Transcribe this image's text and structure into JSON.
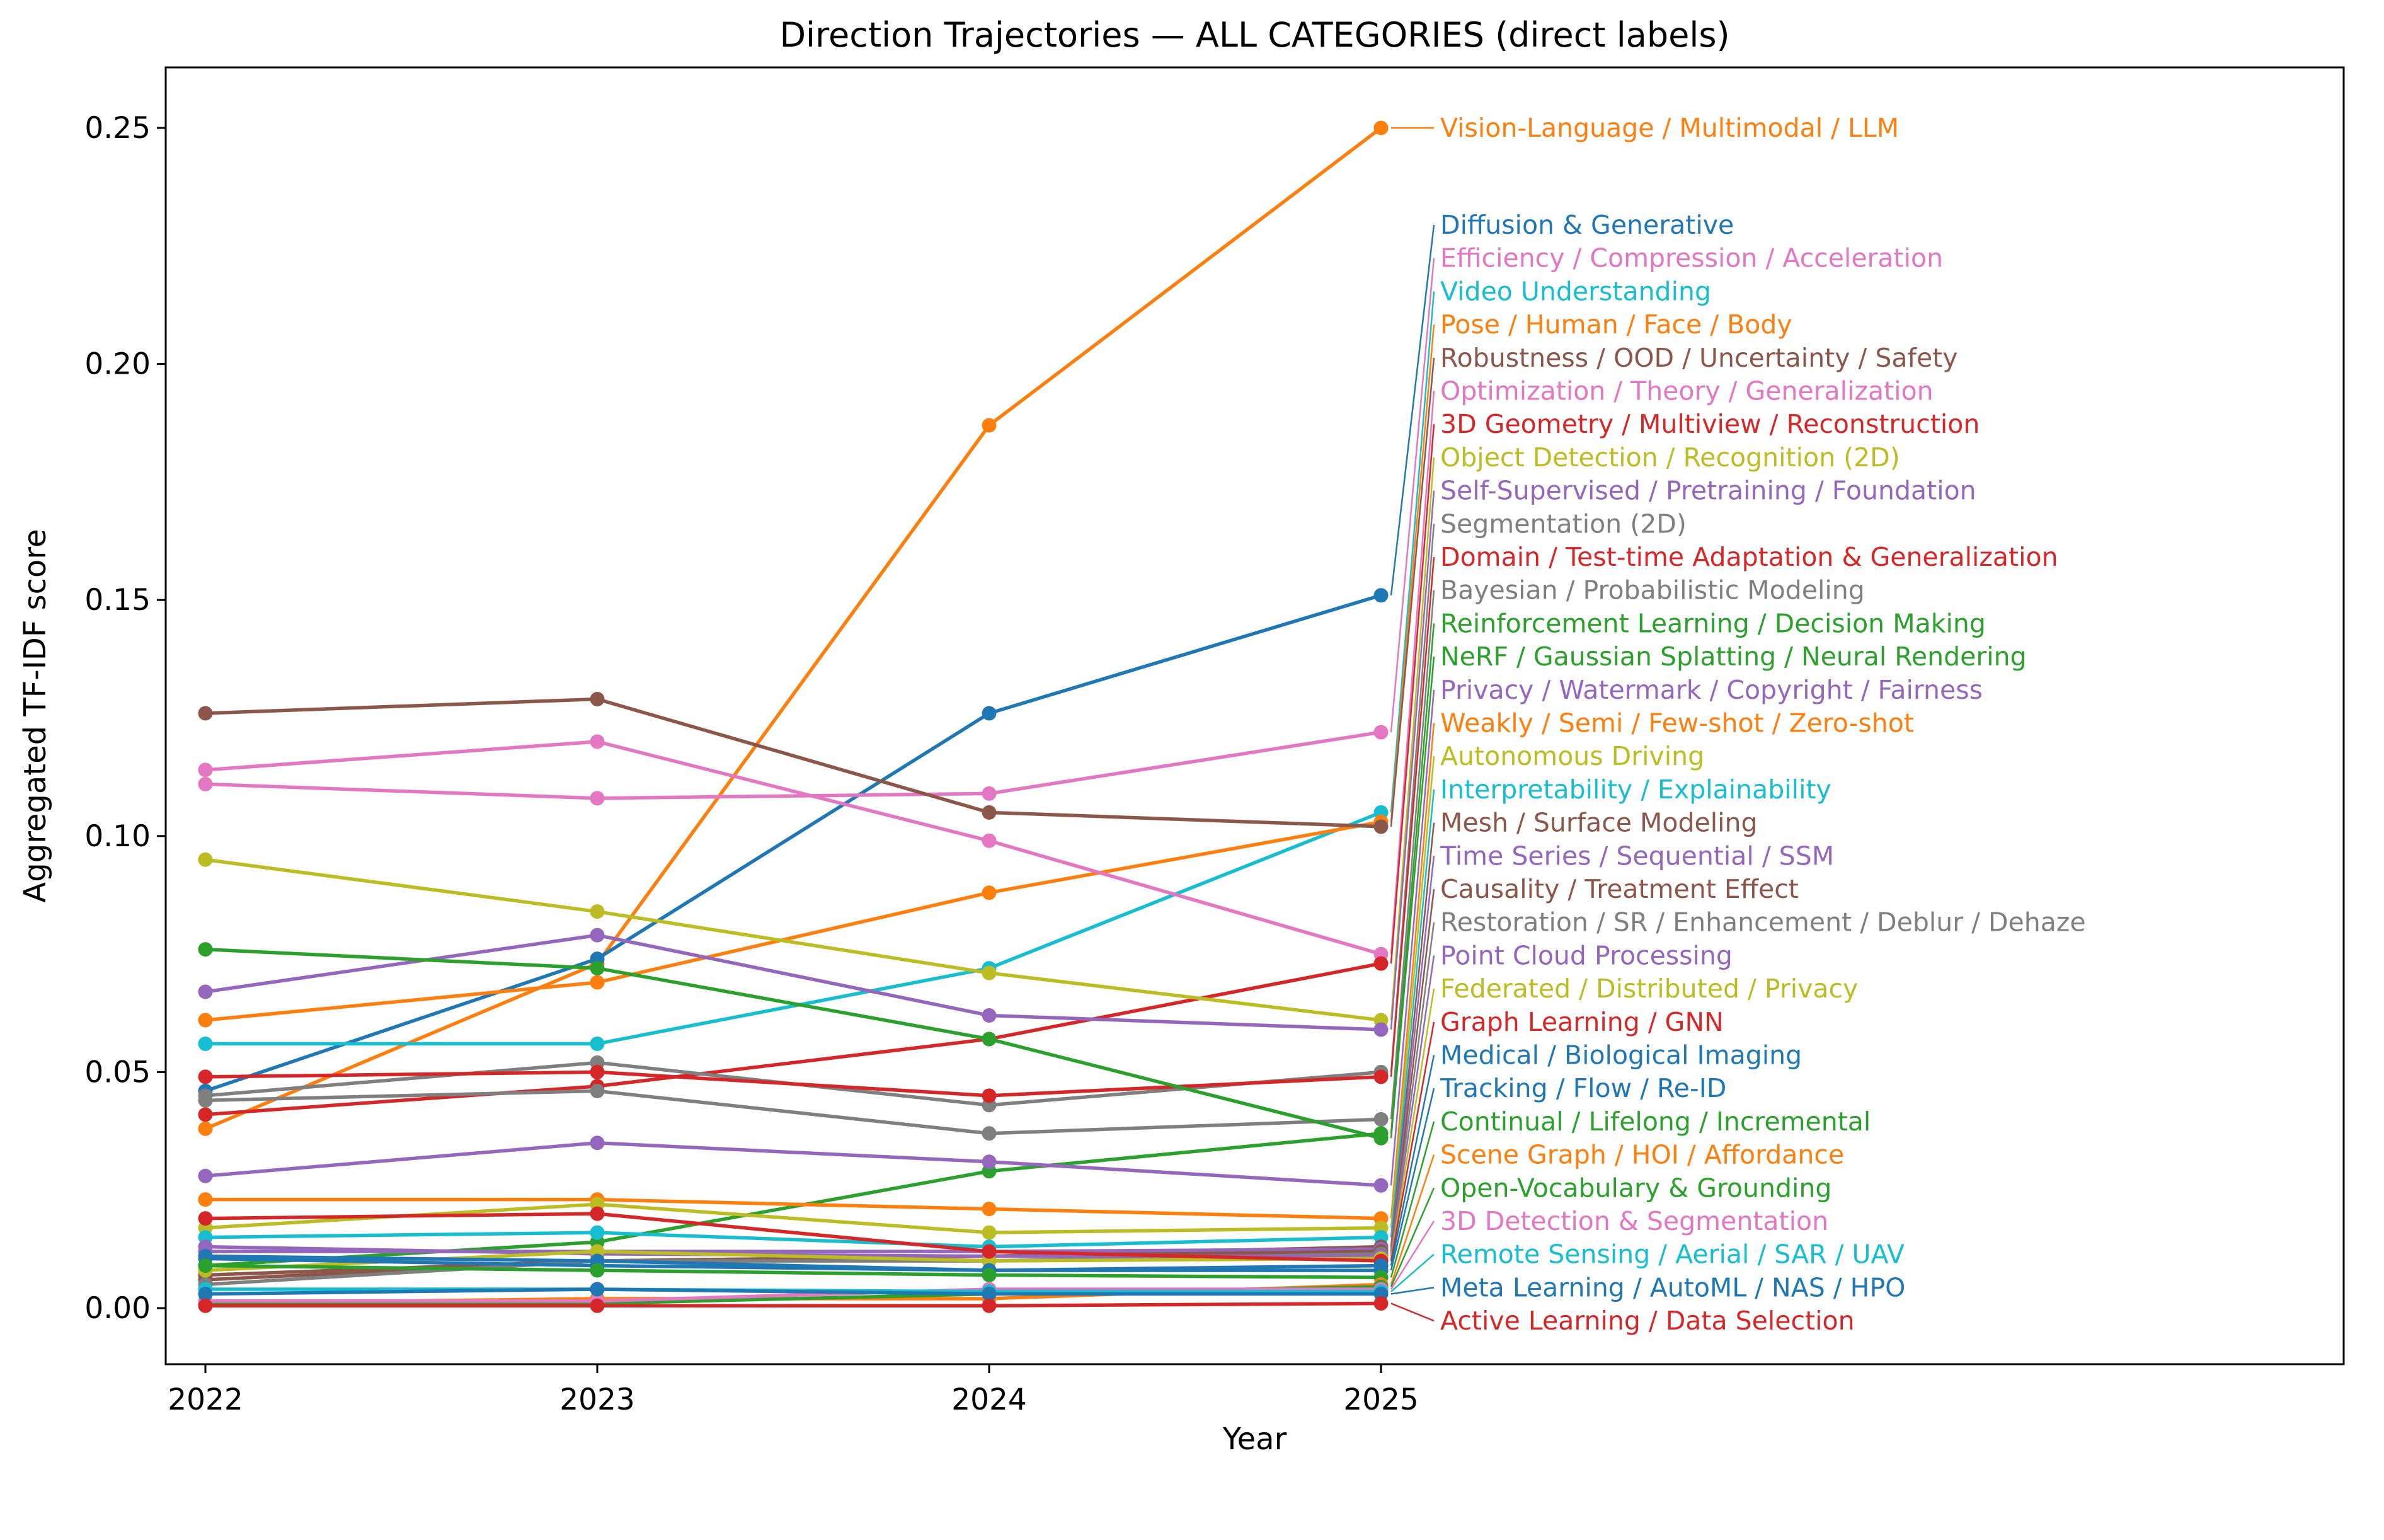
{
  "figure": {
    "background": "#ffffff",
    "plot_background": "#ffffff"
  },
  "chart_data": {
    "type": "line",
    "title": "Direction Trajectories — ALL CATEGORIES (direct labels)",
    "xlabel": "Year",
    "ylabel": "Aggregated TF-IDF score",
    "x": [
      2022,
      2023,
      2024,
      2025
    ],
    "xticklabels": [
      "2022",
      "2023",
      "2024",
      "2025"
    ],
    "yticks": [
      0.0,
      0.05,
      0.1,
      0.15,
      0.2,
      0.25
    ],
    "yticklabels": [
      "0.00",
      "0.05",
      "0.10",
      "0.15",
      "0.20",
      "0.25"
    ],
    "ylim": [
      -0.012,
      0.263
    ],
    "grid": false,
    "marker": "o",
    "legend_position": "direct-labels-right",
    "series": [
      {
        "name": "Vision-Language / Multimodal / LLM",
        "color": "#ff7f0e",
        "values": [
          0.038,
          0.073,
          0.187,
          0.25
        ]
      },
      {
        "name": "Diffusion & Generative",
        "color": "#1f77b4",
        "values": [
          0.046,
          0.074,
          0.126,
          0.151
        ]
      },
      {
        "name": "Efficiency / Compression / Acceleration",
        "color": "#e377c2",
        "values": [
          0.111,
          0.108,
          0.109,
          0.122
        ]
      },
      {
        "name": "Video Understanding",
        "color": "#17becf",
        "values": [
          0.056,
          0.056,
          0.072,
          0.105
        ]
      },
      {
        "name": "Pose / Human / Face / Body",
        "color": "#ff7f0e",
        "values": [
          0.061,
          0.069,
          0.088,
          0.103
        ]
      },
      {
        "name": "Robustness / OOD / Uncertainty / Safety",
        "color": "#8c564b",
        "values": [
          0.126,
          0.129,
          0.105,
          0.102
        ]
      },
      {
        "name": "Optimization / Theory / Generalization",
        "color": "#e377c2",
        "values": [
          0.114,
          0.12,
          0.099,
          0.075
        ]
      },
      {
        "name": "3D Geometry / Multiview / Reconstruction",
        "color": "#d62728",
        "values": [
          0.041,
          0.047,
          0.057,
          0.073
        ]
      },
      {
        "name": "Object Detection / Recognition (2D)",
        "color": "#bcbd22",
        "values": [
          0.095,
          0.084,
          0.071,
          0.061
        ]
      },
      {
        "name": "Self-Supervised / Pretraining / Foundation",
        "color": "#9467bd",
        "values": [
          0.067,
          0.079,
          0.062,
          0.059
        ]
      },
      {
        "name": "Segmentation (2D)",
        "color": "#7f7f7f",
        "values": [
          0.045,
          0.052,
          0.043,
          0.05
        ]
      },
      {
        "name": "Domain / Test-time Adaptation & Generalization",
        "color": "#d62728",
        "values": [
          0.049,
          0.05,
          0.045,
          0.049
        ]
      },
      {
        "name": "Bayesian / Probabilistic Modeling",
        "color": "#7f7f7f",
        "values": [
          0.044,
          0.046,
          0.037,
          0.04
        ]
      },
      {
        "name": "Reinforcement Learning / Decision Making",
        "color": "#2ca02c",
        "values": [
          0.009,
          0.014,
          0.029,
          0.037
        ]
      },
      {
        "name": "NeRF / Gaussian Splatting / Neural Rendering",
        "color": "#2ca02c",
        "values": [
          0.076,
          0.072,
          0.057,
          0.036
        ]
      },
      {
        "name": "Privacy / Watermark / Copyright / Fairness",
        "color": "#9467bd",
        "values": [
          0.028,
          0.035,
          0.031,
          0.026
        ]
      },
      {
        "name": "Weakly / Semi / Few-shot / Zero-shot",
        "color": "#ff7f0e",
        "values": [
          0.023,
          0.023,
          0.021,
          0.019
        ]
      },
      {
        "name": "Autonomous Driving",
        "color": "#bcbd22",
        "values": [
          0.017,
          0.022,
          0.016,
          0.017
        ]
      },
      {
        "name": "Interpretability / Explainability",
        "color": "#17becf",
        "values": [
          0.015,
          0.016,
          0.013,
          0.015
        ]
      },
      {
        "name": "Mesh / Surface Modeling",
        "color": "#8c564b",
        "values": [
          0.007,
          0.01,
          0.011,
          0.013
        ]
      },
      {
        "name": "Time Series / Sequential / SSM",
        "color": "#9467bd",
        "values": [
          0.012,
          0.012,
          0.012,
          0.0125
        ]
      },
      {
        "name": "Causality / Treatment Effect",
        "color": "#8c564b",
        "values": [
          0.006,
          0.01,
          0.011,
          0.012
        ]
      },
      {
        "name": "Restoration / SR / Enhancement / Deblur / Dehaze",
        "color": "#7f7f7f",
        "values": [
          0.005,
          0.01,
          0.01,
          0.0115
        ]
      },
      {
        "name": "Point Cloud Processing",
        "color": "#9467bd",
        "values": [
          0.013,
          0.0115,
          0.011,
          0.011
        ]
      },
      {
        "name": "Federated / Distributed / Privacy",
        "color": "#bcbd22",
        "values": [
          0.008,
          0.012,
          0.01,
          0.0105
        ]
      },
      {
        "name": "Graph Learning / GNN",
        "color": "#d62728",
        "values": [
          0.019,
          0.02,
          0.012,
          0.01
        ]
      },
      {
        "name": "Medical / Biological Imaging",
        "color": "#1f77b4",
        "values": [
          0.011,
          0.01,
          0.008,
          0.009
        ]
      },
      {
        "name": "Tracking / Flow / Re-ID",
        "color": "#1f77b4",
        "values": [
          0.0105,
          0.009,
          0.008,
          0.008
        ]
      },
      {
        "name": "Continual / Lifelong / Incremental",
        "color": "#2ca02c",
        "values": [
          0.009,
          0.008,
          0.007,
          0.0065
        ]
      },
      {
        "name": "Scene Graph / HOI / Affordance",
        "color": "#ff7f0e",
        "values": [
          0.001,
          0.002,
          0.002,
          0.005
        ]
      },
      {
        "name": "Open-Vocabulary & Grounding",
        "color": "#2ca02c",
        "values": [
          0.001,
          0.001,
          0.003,
          0.0045
        ]
      },
      {
        "name": "3D Detection & Segmentation",
        "color": "#e377c2",
        "values": [
          0.0015,
          0.0015,
          0.004,
          0.004
        ]
      },
      {
        "name": "Remote Sensing / Aerial / SAR / UAV",
        "color": "#17becf",
        "values": [
          0.004,
          0.004,
          0.0035,
          0.0035
        ]
      },
      {
        "name": "Meta Learning / AutoML / NAS / HPO",
        "color": "#1f77b4",
        "values": [
          0.003,
          0.004,
          0.003,
          0.003
        ]
      },
      {
        "name": "Active Learning / Data Selection",
        "color": "#d62728",
        "values": [
          0.0005,
          0.0005,
          0.0005,
          0.001
        ]
      }
    ]
  }
}
